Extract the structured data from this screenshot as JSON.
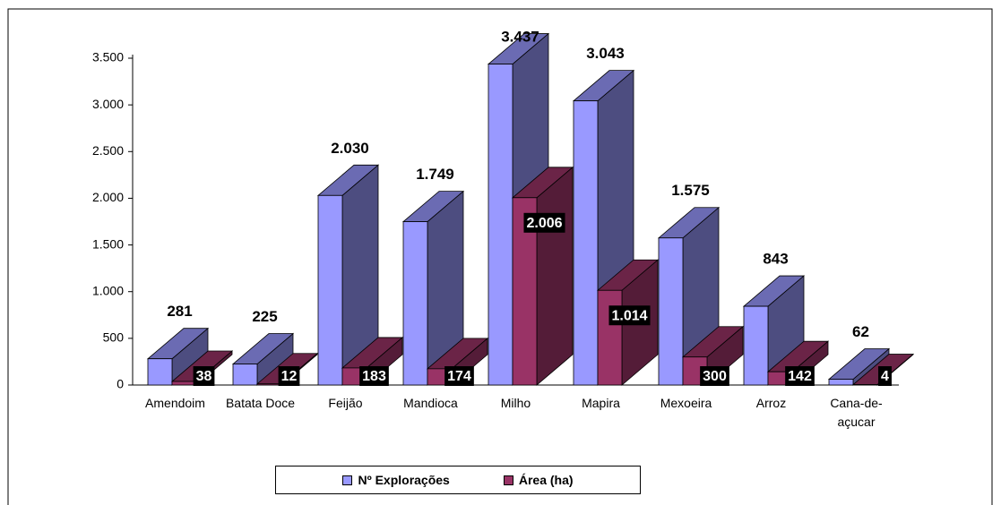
{
  "chart_data": {
    "type": "bar3d",
    "categories": [
      "Amendoim",
      "Batata Doce",
      "Feijão",
      "Mandioca",
      "Milho",
      "Mapira",
      "Mexoeira",
      "Arroz",
      "Cana-de-açucar"
    ],
    "series": [
      {
        "name": "Nº Explorações",
        "color": "#9999ff",
        "values": [
          281,
          225,
          2030,
          1749,
          3437,
          3043,
          1575,
          843,
          62
        ],
        "value_labels": [
          "281",
          "225",
          "2.030",
          "1.749",
          "3.437",
          "3.043",
          "1.575",
          "843",
          "62"
        ]
      },
      {
        "name": "Área (ha)",
        "color": "#993366",
        "values": [
          38,
          12,
          183,
          174,
          2006,
          1014,
          300,
          142,
          4
        ],
        "value_labels": [
          "38",
          "12",
          "183",
          "174",
          "2.006",
          "1.014",
          "300",
          "142",
          "4"
        ]
      }
    ],
    "ylim": [
      0,
      3500
    ],
    "yticks": [
      0,
      500,
      {
        "value": 1000,
        "label": "1.000"
      },
      {
        "value": 1500,
        "label": "1.500"
      },
      {
        "value": 2000,
        "label": "2.000"
      },
      {
        "value": 2500,
        "label": "2.500"
      },
      {
        "value": 3000,
        "label": "3.000"
      },
      {
        "value": 3500,
        "label": "3.500"
      }
    ]
  }
}
